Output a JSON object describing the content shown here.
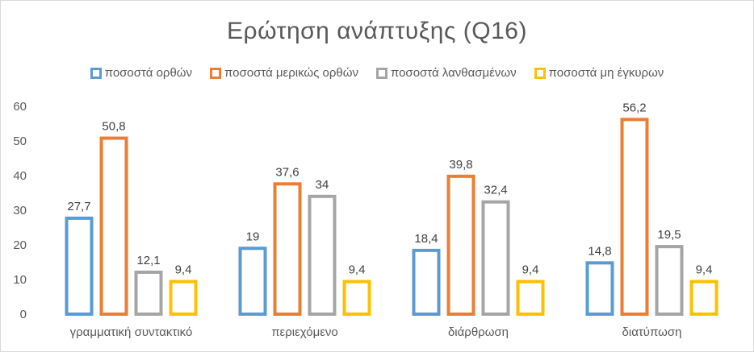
{
  "chart_data": {
    "type": "bar",
    "title": "Ερώτηση ανάπτυξης (Q16)",
    "xlabel": "",
    "ylabel": "",
    "ylim": [
      0,
      60
    ],
    "yticks": [
      0,
      10,
      20,
      30,
      40,
      50,
      60
    ],
    "grid": false,
    "legend": "top",
    "categories": [
      "γραμματική συντακτικό",
      "περιεχόμενο",
      "διάρθρωση",
      "διατύπωση"
    ],
    "series": [
      {
        "name": "ποσοστά ορθών",
        "color": "#5B9BD5",
        "values": [
          27.7,
          19,
          18.4,
          14.8
        ],
        "labels": [
          "27,7",
          "19",
          "18,4",
          "14,8"
        ]
      },
      {
        "name": "ποσοστά μερικώς ορθών",
        "color": "#ED7D31",
        "values": [
          50.8,
          37.6,
          39.8,
          56.2
        ],
        "labels": [
          "50,8",
          "37,6",
          "39,8",
          "56,2"
        ]
      },
      {
        "name": "ποσοστά λανθασμένων",
        "color": "#A5A5A5",
        "values": [
          12.1,
          34,
          32.4,
          19.5
        ],
        "labels": [
          "12,1",
          "34",
          "32,4",
          "19,5"
        ]
      },
      {
        "name": "ποσοστά μη έγκυρων",
        "color": "#FFC000",
        "values": [
          9.4,
          9.4,
          9.4,
          9.4
        ],
        "labels": [
          "9,4",
          "9,4",
          "9,4",
          "9,4"
        ]
      }
    ]
  }
}
